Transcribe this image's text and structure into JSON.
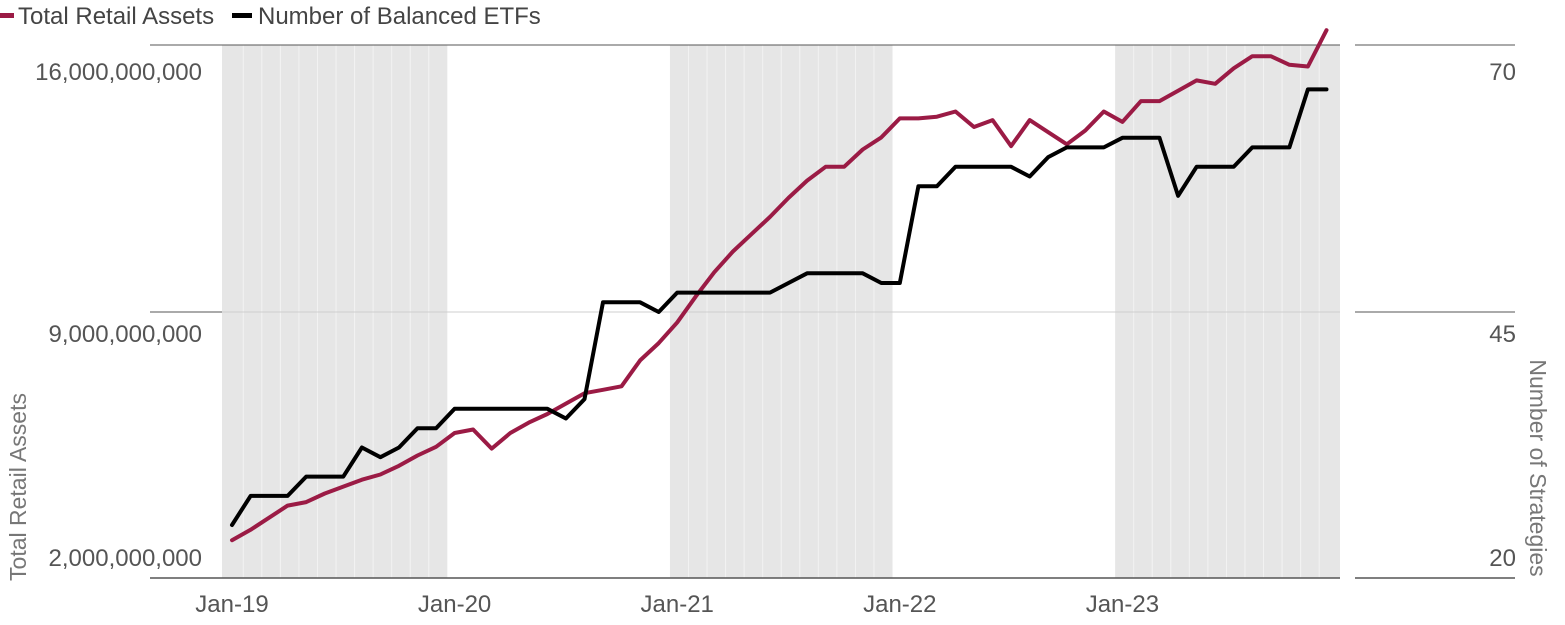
{
  "chart_data": {
    "type": "line",
    "x_axis": {
      "type": "monthly",
      "start": "Jan-19",
      "end": "Dec-23",
      "tick_labels": [
        "Jan-19",
        "Jan-20",
        "Jan-21",
        "Jan-22",
        "Jan-23"
      ]
    },
    "left_axis": {
      "label": "Total Retail Assets",
      "range": [
        2000000000,
        16000000000
      ],
      "tick_values": [
        2000000000,
        9000000000,
        16000000000
      ],
      "tick_labels": [
        "2,000,000,000",
        "9,000,000,000",
        "16,000,000,000"
      ]
    },
    "right_axis": {
      "label": "Number of Strategies",
      "range": [
        20,
        70
      ],
      "tick_values": [
        20,
        45,
        70
      ],
      "tick_labels": [
        "20",
        "45",
        "70"
      ]
    },
    "shaded_years": [
      "2019",
      "2021",
      "2023"
    ],
    "grid": "horizontal-middle",
    "legend_position": "top-left",
    "series": [
      {
        "name": "Total Retail Assets",
        "axis": "left",
        "color": "#9b1b45",
        "x": [
          "Jan-19",
          "Feb-19",
          "Mar-19",
          "Apr-19",
          "May-19",
          "Jun-19",
          "Jul-19",
          "Aug-19",
          "Sep-19",
          "Oct-19",
          "Nov-19",
          "Dec-19",
          "Jan-20",
          "Feb-20",
          "Mar-20",
          "Apr-20",
          "May-20",
          "Jun-20",
          "Jul-20",
          "Aug-20",
          "Sep-20",
          "Oct-20",
          "Nov-20",
          "Dec-20",
          "Jan-21",
          "Feb-21",
          "Mar-21",
          "Apr-21",
          "May-21",
          "Jun-21",
          "Jul-21",
          "Aug-21",
          "Sep-21",
          "Oct-21",
          "Nov-21",
          "Dec-21",
          "Jan-22",
          "Feb-22",
          "Mar-22",
          "Apr-22",
          "May-22",
          "Jun-22",
          "Jul-22",
          "Aug-22",
          "Sep-22",
          "Oct-22",
          "Nov-22",
          "Dec-22",
          "Jan-23",
          "Feb-23",
          "Mar-23",
          "Apr-23",
          "May-23",
          "Jun-23",
          "Jul-23",
          "Aug-23",
          "Sep-23",
          "Oct-23",
          "Nov-23",
          "Dec-23"
        ],
        "values": [
          2400000000,
          2700000000,
          3050000000,
          3400000000,
          3500000000,
          3750000000,
          3950000000,
          4150000000,
          4300000000,
          4550000000,
          4850000000,
          5100000000,
          5500000000,
          5600000000,
          5050000000,
          5500000000,
          5800000000,
          6050000000,
          6350000000,
          6650000000,
          6750000000,
          6850000000,
          7600000000,
          8100000000,
          8700000000,
          9450000000,
          10150000000,
          10750000000,
          11250000000,
          11750000000,
          12300000000,
          12800000000,
          13200000000,
          13200000000,
          13700000000,
          14050000000,
          14600000000,
          14600000000,
          14650000000,
          14800000000,
          14350000000,
          14550000000,
          13800000000,
          14550000000,
          14200000000,
          13850000000,
          14250000000,
          14800000000,
          14500000000,
          15100000000,
          15100000000,
          15400000000,
          15700000000,
          15600000000,
          16050000000,
          16400000000,
          16400000000,
          16150000000,
          16100000000,
          17150000000
        ]
      },
      {
        "name": "Number of Balanced ETFs",
        "axis": "right",
        "color": "#000000",
        "x": [
          "Jan-19",
          "Feb-19",
          "Mar-19",
          "Apr-19",
          "May-19",
          "Jun-19",
          "Jul-19",
          "Aug-19",
          "Sep-19",
          "Oct-19",
          "Nov-19",
          "Dec-19",
          "Jan-20",
          "Feb-20",
          "Mar-20",
          "Apr-20",
          "May-20",
          "Jun-20",
          "Jul-20",
          "Aug-20",
          "Sep-20",
          "Oct-20",
          "Nov-20",
          "Dec-20",
          "Jan-21",
          "Feb-21",
          "Mar-21",
          "Apr-21",
          "May-21",
          "Jun-21",
          "Jul-21",
          "Aug-21",
          "Sep-21",
          "Oct-21",
          "Nov-21",
          "Dec-21",
          "Jan-22",
          "Feb-22",
          "Mar-22",
          "Apr-22",
          "May-22",
          "Jun-22",
          "Jul-22",
          "Aug-22",
          "Sep-22",
          "Oct-22",
          "Nov-22",
          "Dec-22",
          "Jan-23",
          "Feb-23",
          "Mar-23",
          "Apr-23",
          "May-23",
          "Jun-23",
          "Jul-23",
          "Aug-23",
          "Sep-23",
          "Oct-23",
          "Nov-23",
          "Dec-23"
        ],
        "values": [
          23,
          26,
          26,
          26,
          28,
          28,
          28,
          31,
          30,
          31,
          33,
          33,
          35,
          35,
          35,
          35,
          35,
          35,
          34,
          36,
          46,
          46,
          46,
          45,
          47,
          47,
          47,
          47,
          47,
          47,
          48,
          49,
          49,
          49,
          49,
          48,
          48,
          58,
          58,
          60,
          60,
          60,
          60,
          59,
          61,
          62,
          62,
          62,
          63,
          63,
          63,
          57,
          60,
          60,
          60,
          62,
          62,
          62,
          68,
          68
        ]
      }
    ]
  }
}
